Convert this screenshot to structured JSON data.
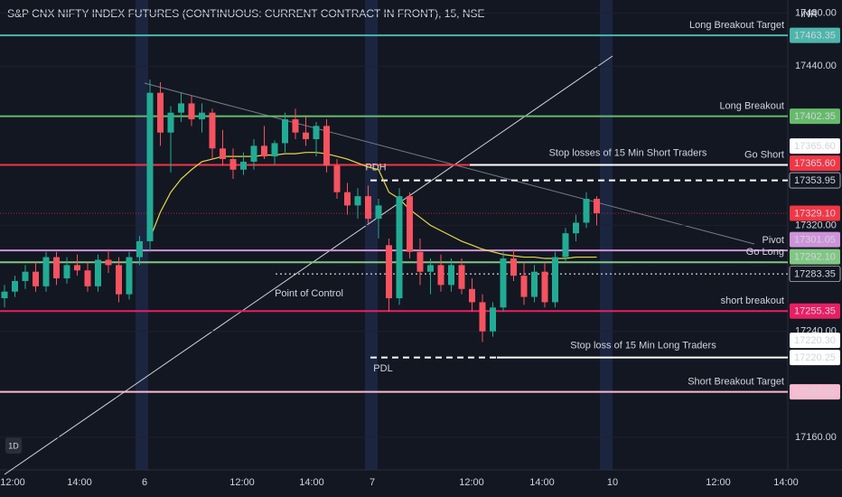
{
  "chart_data": {
    "type": "candlestick",
    "title": "S&P CNX NIFTY INDEX FUTURES (CONTINUOUS: CURRENT CONTRACT IN FRONT), 15, NSE",
    "currency": "INR",
    "interval_badge": "1D",
    "ylim": [
      17135.5,
      17490
    ],
    "yticks": [
      {
        "value": 17480,
        "label": "17480.00"
      },
      {
        "value": 17440,
        "label": "17440.00"
      },
      {
        "value": 17320,
        "label": "17320.00"
      },
      {
        "value": 17240,
        "label": "17240.00"
      },
      {
        "value": 17160,
        "label": "17160.00"
      }
    ],
    "time_labels": [
      "12:00",
      "14:00",
      "6",
      "12:00",
      "14:00",
      "7",
      "12:00",
      "14:00",
      "10",
      "12:00",
      "14:00"
    ],
    "up_color": "#22ab94",
    "down_color": "#f7525f",
    "candles": [
      {
        "o": 17265,
        "h": 17275,
        "l": 17258,
        "c": 17270
      },
      {
        "o": 17270,
        "h": 17282,
        "l": 17266,
        "c": 17278
      },
      {
        "o": 17278,
        "h": 17290,
        "l": 17272,
        "c": 17285
      },
      {
        "o": 17285,
        "h": 17292,
        "l": 17270,
        "c": 17274
      },
      {
        "o": 17274,
        "h": 17300,
        "l": 17270,
        "c": 17296
      },
      {
        "o": 17296,
        "h": 17300,
        "l": 17275,
        "c": 17280
      },
      {
        "o": 17280,
        "h": 17296,
        "l": 17276,
        "c": 17290
      },
      {
        "o": 17290,
        "h": 17298,
        "l": 17282,
        "c": 17286
      },
      {
        "o": 17286,
        "h": 17292,
        "l": 17270,
        "c": 17274
      },
      {
        "o": 17274,
        "h": 17298,
        "l": 17270,
        "c": 17294
      },
      {
        "o": 17294,
        "h": 17302,
        "l": 17284,
        "c": 17290
      },
      {
        "o": 17290,
        "h": 17296,
        "l": 17262,
        "c": 17268
      },
      {
        "o": 17268,
        "h": 17300,
        "l": 17264,
        "c": 17296
      },
      {
        "o": 17296,
        "h": 17312,
        "l": 17290,
        "c": 17308
      },
      {
        "o": 17308,
        "h": 17430,
        "l": 17300,
        "c": 17420
      },
      {
        "o": 17420,
        "h": 17428,
        "l": 17380,
        "c": 17390
      },
      {
        "o": 17390,
        "h": 17410,
        "l": 17360,
        "c": 17405
      },
      {
        "o": 17405,
        "h": 17420,
        "l": 17398,
        "c": 17412
      },
      {
        "o": 17412,
        "h": 17418,
        "l": 17395,
        "c": 17400
      },
      {
        "o": 17400,
        "h": 17412,
        "l": 17390,
        "c": 17405
      },
      {
        "o": 17405,
        "h": 17408,
        "l": 17370,
        "c": 17378
      },
      {
        "o": 17378,
        "h": 17392,
        "l": 17365,
        "c": 17370
      },
      {
        "o": 17370,
        "h": 17378,
        "l": 17355,
        "c": 17362
      },
      {
        "o": 17362,
        "h": 17375,
        "l": 17358,
        "c": 17368
      },
      {
        "o": 17368,
        "h": 17385,
        "l": 17362,
        "c": 17380
      },
      {
        "o": 17380,
        "h": 17395,
        "l": 17370,
        "c": 17372
      },
      {
        "o": 17372,
        "h": 17384,
        "l": 17366,
        "c": 17382
      },
      {
        "o": 17382,
        "h": 17405,
        "l": 17375,
        "c": 17400
      },
      {
        "o": 17400,
        "h": 17408,
        "l": 17385,
        "c": 17390
      },
      {
        "o": 17390,
        "h": 17402,
        "l": 17380,
        "c": 17385
      },
      {
        "o": 17385,
        "h": 17398,
        "l": 17372,
        "c": 17395
      },
      {
        "o": 17395,
        "h": 17400,
        "l": 17360,
        "c": 17365
      },
      {
        "o": 17365,
        "h": 17370,
        "l": 17340,
        "c": 17345
      },
      {
        "o": 17345,
        "h": 17352,
        "l": 17328,
        "c": 17335
      },
      {
        "o": 17335,
        "h": 17348,
        "l": 17325,
        "c": 17342
      },
      {
        "o": 17342,
        "h": 17350,
        "l": 17320,
        "c": 17325
      },
      {
        "o": 17325,
        "h": 17340,
        "l": 17310,
        "c": 17335
      },
      {
        "o": 17305,
        "h": 17310,
        "l": 17255,
        "c": 17265
      },
      {
        "o": 17265,
        "h": 17348,
        "l": 17260,
        "c": 17342
      },
      {
        "o": 17342,
        "h": 17345,
        "l": 17295,
        "c": 17300
      },
      {
        "o": 17300,
        "h": 17310,
        "l": 17275,
        "c": 17285
      },
      {
        "o": 17285,
        "h": 17295,
        "l": 17268,
        "c": 17290
      },
      {
        "o": 17290,
        "h": 17298,
        "l": 17270,
        "c": 17275
      },
      {
        "o": 17275,
        "h": 17295,
        "l": 17270,
        "c": 17290
      },
      {
        "o": 17290,
        "h": 17295,
        "l": 17268,
        "c": 17272
      },
      {
        "o": 17272,
        "h": 17280,
        "l": 17255,
        "c": 17262
      },
      {
        "o": 17262,
        "h": 17268,
        "l": 17232,
        "c": 17240
      },
      {
        "o": 17240,
        "h": 17262,
        "l": 17236,
        "c": 17258
      },
      {
        "o": 17258,
        "h": 17300,
        "l": 17255,
        "c": 17295
      },
      {
        "o": 17295,
        "h": 17302,
        "l": 17278,
        "c": 17282
      },
      {
        "o": 17282,
        "h": 17292,
        "l": 17260,
        "c": 17266
      },
      {
        "o": 17266,
        "h": 17290,
        "l": 17262,
        "c": 17285
      },
      {
        "o": 17285,
        "h": 17292,
        "l": 17258,
        "c": 17262
      },
      {
        "o": 17262,
        "h": 17300,
        "l": 17258,
        "c": 17296
      },
      {
        "o": 17296,
        "h": 17318,
        "l": 17292,
        "c": 17314
      },
      {
        "o": 17314,
        "h": 17328,
        "l": 17308,
        "c": 17322
      },
      {
        "o": 17322,
        "h": 17345,
        "l": 17318,
        "c": 17340
      },
      {
        "o": 17340,
        "h": 17342,
        "l": 17320,
        "c": 17329.1
      }
    ],
    "vwap": {
      "color": "#e6d84a",
      "values": [
        null,
        null,
        null,
        null,
        null,
        null,
        null,
        null,
        null,
        null,
        null,
        null,
        null,
        null,
        17310,
        17330,
        17345,
        17355,
        17362,
        17368,
        17370,
        17372,
        17372,
        17372,
        17372,
        17373,
        17373,
        17374,
        17374,
        17375,
        17375,
        17374,
        17372,
        17370,
        17367,
        17364,
        17362,
        17345,
        17340,
        17332,
        17326,
        17320,
        17316,
        17312,
        17308,
        17305,
        17302,
        17300,
        17298,
        17297,
        17296,
        17296,
        17295,
        17295,
        17295,
        17296,
        17296,
        17296
      ]
    },
    "levels": [
      {
        "name": "Long Breakout Target",
        "price": 17463.35,
        "color": "#4db6ac"
      },
      {
        "name": "Long Breakout",
        "price": 17402.35,
        "color": "#66bb6a"
      },
      {
        "name": "Go Short",
        "price": 17365.6,
        "color": "#f23645"
      },
      {
        "name": "Pivot",
        "price": 17301.05,
        "color": "#ce93d8"
      },
      {
        "name": "Go Long",
        "price": 17292.1,
        "color": "#81c784"
      },
      {
        "name": "short breakout",
        "price": 17255.35,
        "color": "#e91e63"
      },
      {
        "name": "Short  Breakout Target",
        "price": 17194.35,
        "color": "#f8bbd0"
      }
    ],
    "guides": [
      {
        "name": "Stop losses of 15 Min Short Traders",
        "price": 17365.6,
        "style": "solid"
      },
      {
        "price": 17353.95,
        "style": "dashed"
      },
      {
        "price": 17283.35,
        "style": "dotted"
      },
      {
        "name": "Stop loss of 15 Min Long Traders",
        "price": 17220.3,
        "style": "solid"
      }
    ],
    "annotations": [
      "PDH",
      "PDL",
      "Point of Control"
    ],
    "price_tags": [
      {
        "price": 17463.35,
        "bg": "#4db6ac",
        "fg": "#131722"
      },
      {
        "price": 17402.35,
        "bg": "#66bb6a",
        "fg": "#131722"
      },
      {
        "price": {
          "value": 17365.6,
          "label": "17365.60"
        },
        "bg": "#ffffff",
        "fg": "#131722"
      },
      {
        "price": {
          "value": 17365.6,
          "label": "17365.60"
        },
        "bg": "#f23645",
        "fg": "#ffffff"
      },
      {
        "price": 17353.95,
        "bg": "#131722",
        "fg": "#ffffff"
      },
      {
        "price": {
          "value": 17329.1,
          "label": "17329.10"
        },
        "bg": "#f23645",
        "fg": "#ffffff"
      },
      {
        "price": 17301.05,
        "bg": "#ce93d8",
        "fg": "#131722"
      },
      {
        "price": {
          "value": 17292.1,
          "label": "17292.10"
        },
        "bg": "#81c784",
        "fg": "#131722"
      },
      {
        "price": 17283.35,
        "bg": "#131722",
        "fg": "#ffffff"
      },
      {
        "price": 17255.35,
        "bg": "#e91e63",
        "fg": "#ffffff"
      },
      {
        "price": {
          "value": 17220.3,
          "label": "17220.30"
        },
        "bg": "#ffffff",
        "fg": "#131722"
      },
      {
        "price": 17220.25,
        "bg": "#ffffff",
        "fg": "#131722"
      },
      {
        "price": 17194.35,
        "bg": "#f8bbd0",
        "fg": "#131722"
      }
    ]
  }
}
